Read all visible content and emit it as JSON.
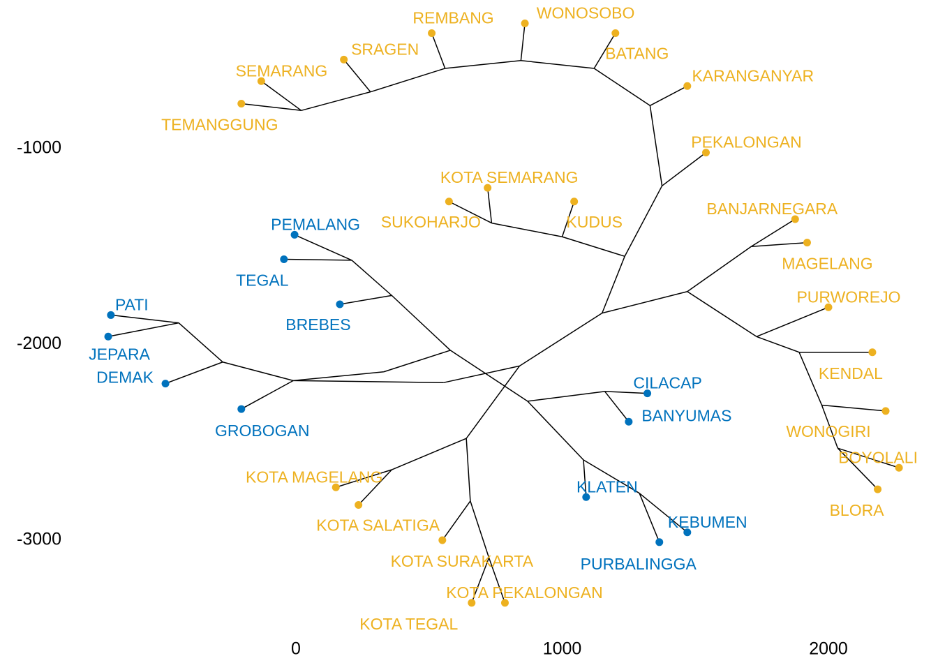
{
  "chart_data": {
    "type": "scatter",
    "subtype": "unrooted-tree",
    "title": "",
    "xlabel": "",
    "ylabel": "",
    "xlim": [
      -710,
      2290
    ],
    "ylim": [
      -3400,
      -400
    ],
    "grid": false,
    "legend": "none",
    "colors": {
      "cluster1": "#0072BD",
      "cluster2": "#EDB120",
      "edge": "#000000"
    },
    "x_ticks": [
      {
        "value": 0,
        "label": "0"
      },
      {
        "value": 1000,
        "label": "1000"
      },
      {
        "value": 2000,
        "label": "2000"
      }
    ],
    "y_ticks": [
      {
        "value": -1000,
        "label": "-1000"
      },
      {
        "value": -2000,
        "label": "-2000"
      },
      {
        "value": -3000,
        "label": "-3000"
      }
    ],
    "leaves": [
      {
        "name": "PEMALANG",
        "x": -5,
        "y": -1440,
        "cluster": "cluster1"
      },
      {
        "name": "TEGAL",
        "x": -45,
        "y": -1565,
        "cluster": "cluster1"
      },
      {
        "name": "BREBES",
        "x": 165,
        "y": -1795,
        "cluster": "cluster1"
      },
      {
        "name": "PATI",
        "x": -695,
        "y": -1850,
        "cluster": "cluster1"
      },
      {
        "name": "JEPARA",
        "x": -705,
        "y": -1960,
        "cluster": "cluster1"
      },
      {
        "name": "DEMAK",
        "x": -490,
        "y": -2200,
        "cluster": "cluster1"
      },
      {
        "name": "GROBOGAN",
        "x": -205,
        "y": -2330,
        "cluster": "cluster1"
      },
      {
        "name": "CILACAP",
        "x": 1320,
        "y": -2250,
        "cluster": "cluster1"
      },
      {
        "name": "BANYUMAS",
        "x": 1250,
        "y": -2395,
        "cluster": "cluster1"
      },
      {
        "name": "KLATEN",
        "x": 1090,
        "y": -2780,
        "cluster": "cluster1"
      },
      {
        "name": "KEBUMEN",
        "x": 1470,
        "y": -2960,
        "cluster": "cluster1"
      },
      {
        "name": "PURBALINGGA",
        "x": 1365,
        "y": -3010,
        "cluster": "cluster1"
      },
      {
        "name": "TEMANGGUNG",
        "x": -205,
        "y": -770,
        "cluster": "cluster2"
      },
      {
        "name": "SEMARANG",
        "x": -130,
        "y": -655,
        "cluster": "cluster2"
      },
      {
        "name": "SRAGEN",
        "x": 180,
        "y": -545,
        "cluster": "cluster2"
      },
      {
        "name": "REMBANG",
        "x": 510,
        "y": -410,
        "cluster": "cluster2"
      },
      {
        "name": "WONOSOBO",
        "x": 860,
        "y": -360,
        "cluster": "cluster2"
      },
      {
        "name": "BATANG",
        "x": 1200,
        "y": -410,
        "cluster": "cluster2"
      },
      {
        "name": "KARANGANYAR",
        "x": 1470,
        "y": -680,
        "cluster": "cluster2"
      },
      {
        "name": "PEKALONGAN",
        "x": 1540,
        "y": -1020,
        "cluster": "cluster2"
      },
      {
        "name": "KOTA SEMARANG",
        "x": 720,
        "y": -1200,
        "cluster": "cluster2"
      },
      {
        "name": "SUKOHARJO",
        "x": 575,
        "y": -1270,
        "cluster": "cluster2"
      },
      {
        "name": "KUDUS",
        "x": 1045,
        "y": -1270,
        "cluster": "cluster2"
      },
      {
        "name": "BANJARNEGARA",
        "x": 1875,
        "y": -1360,
        "cluster": "cluster2"
      },
      {
        "name": "MAGELANG",
        "x": 1920,
        "y": -1480,
        "cluster": "cluster2"
      },
      {
        "name": "PURWOREJO",
        "x": 2000,
        "y": -1810,
        "cluster": "cluster2"
      },
      {
        "name": "KENDAL",
        "x": 2165,
        "y": -2040,
        "cluster": "cluster2"
      },
      {
        "name": "WONOGIRI",
        "x": 2215,
        "y": -2340,
        "cluster": "cluster2"
      },
      {
        "name": "BOYOLALI",
        "x": 2265,
        "y": -2630,
        "cluster": "cluster2"
      },
      {
        "name": "BLORA",
        "x": 2185,
        "y": -2740,
        "cluster": "cluster2"
      },
      {
        "name": "KOTA MAGELANG",
        "x": 150,
        "y": -2730,
        "cluster": "cluster2"
      },
      {
        "name": "KOTA SALATIGA",
        "x": 235,
        "y": -2820,
        "cluster": "cluster2"
      },
      {
        "name": "KOTA SURAKARTA",
        "x": 550,
        "y": -3000,
        "cluster": "cluster2"
      },
      {
        "name": "KOTA PEKALONGAN",
        "x": 785,
        "y": -3320,
        "cluster": "cluster2"
      },
      {
        "name": "KOTA TEGAL",
        "x": 660,
        "y": -3320,
        "cluster": "cluster2"
      }
    ],
    "edges": [
      [
        [
          1290,
          -2760
        ],
        [
          1470,
          -2960
        ]
      ],
      [
        [
          1290,
          -2760
        ],
        [
          1365,
          -3010
        ]
      ],
      [
        [
          1080,
          -2590
        ],
        [
          1290,
          -2760
        ]
      ],
      [
        [
          1080,
          -2590
        ],
        [
          1090,
          -2780
        ]
      ],
      [
        [
          870,
          -2290
        ],
        [
          1080,
          -2590
        ]
      ],
      [
        [
          1160,
          -2240
        ],
        [
          1320,
          -2250
        ]
      ],
      [
        [
          1160,
          -2240
        ],
        [
          1250,
          -2395
        ]
      ],
      [
        [
          870,
          -2290
        ],
        [
          1160,
          -2240
        ]
      ],
      [
        [
          580,
          -2030
        ],
        [
          870,
          -2290
        ]
      ],
      [
        [
          360,
          -1750
        ],
        [
          580,
          -2030
        ]
      ],
      [
        [
          360,
          -1750
        ],
        [
          165,
          -1795
        ]
      ],
      [
        [
          210,
          -1570
        ],
        [
          360,
          -1750
        ]
      ],
      [
        [
          210,
          -1570
        ],
        [
          -5,
          -1440
        ]
      ],
      [
        [
          210,
          -1570
        ],
        [
          -45,
          -1565
        ]
      ],
      [
        [
          580,
          -2030
        ],
        [
          330,
          -2140
        ]
      ],
      [
        [
          330,
          -2140
        ],
        [
          -10,
          -2185
        ]
      ],
      [
        [
          -10,
          -2185
        ],
        [
          -275,
          -2090
        ]
      ],
      [
        [
          -275,
          -2090
        ],
        [
          -440,
          -1890
        ]
      ],
      [
        [
          -440,
          -1890
        ],
        [
          -695,
          -1850
        ]
      ],
      [
        [
          -440,
          -1890
        ],
        [
          -705,
          -1960
        ]
      ],
      [
        [
          -275,
          -2090
        ],
        [
          -490,
          -2200
        ]
      ],
      [
        [
          -10,
          -2185
        ],
        [
          -205,
          -2330
        ]
      ],
      [
        [
          -10,
          -2185
        ],
        [
          555,
          -2195
        ]
      ],
      [
        [
          555,
          -2195
        ],
        [
          840,
          -2110
        ]
      ],
      [
        [
          840,
          -2110
        ],
        [
          1150,
          -1840
        ]
      ],
      [
        [
          840,
          -2110
        ],
        [
          640,
          -2480
        ]
      ],
      [
        [
          640,
          -2480
        ],
        [
          360,
          -2640
        ]
      ],
      [
        [
          360,
          -2640
        ],
        [
          150,
          -2730
        ]
      ],
      [
        [
          360,
          -2640
        ],
        [
          235,
          -2820
        ]
      ],
      [
        [
          640,
          -2480
        ],
        [
          655,
          -2800
        ]
      ],
      [
        [
          655,
          -2800
        ],
        [
          550,
          -3000
        ]
      ],
      [
        [
          655,
          -2800
        ],
        [
          725,
          -3090
        ]
      ],
      [
        [
          725,
          -3090
        ],
        [
          785,
          -3320
        ]
      ],
      [
        [
          725,
          -3090
        ],
        [
          660,
          -3320
        ]
      ],
      [
        [
          1150,
          -1840
        ],
        [
          1235,
          -1550
        ]
      ],
      [
        [
          1235,
          -1550
        ],
        [
          1000,
          -1450
        ]
      ],
      [
        [
          1000,
          -1450
        ],
        [
          1045,
          -1270
        ]
      ],
      [
        [
          1000,
          -1450
        ],
        [
          735,
          -1380
        ]
      ],
      [
        [
          735,
          -1380
        ],
        [
          720,
          -1200
        ]
      ],
      [
        [
          735,
          -1380
        ],
        [
          575,
          -1270
        ]
      ],
      [
        [
          1235,
          -1550
        ],
        [
          1375,
          -1190
        ]
      ],
      [
        [
          1375,
          -1190
        ],
        [
          1540,
          -1020
        ]
      ],
      [
        [
          1375,
          -1190
        ],
        [
          1330,
          -780
        ]
      ],
      [
        [
          1330,
          -780
        ],
        [
          1470,
          -680
        ]
      ],
      [
        [
          1330,
          -780
        ],
        [
          1120,
          -590
        ]
      ],
      [
        [
          1120,
          -590
        ],
        [
          1200,
          -410
        ]
      ],
      [
        [
          1120,
          -590
        ],
        [
          845,
          -550
        ]
      ],
      [
        [
          845,
          -550
        ],
        [
          860,
          -360
        ]
      ],
      [
        [
          845,
          -550
        ],
        [
          560,
          -590
        ]
      ],
      [
        [
          560,
          -590
        ],
        [
          510,
          -410
        ]
      ],
      [
        [
          560,
          -590
        ],
        [
          280,
          -710
        ]
      ],
      [
        [
          280,
          -710
        ],
        [
          180,
          -545
        ]
      ],
      [
        [
          280,
          -710
        ],
        [
          20,
          -805
        ]
      ],
      [
        [
          20,
          -805
        ],
        [
          -130,
          -655
        ]
      ],
      [
        [
          20,
          -805
        ],
        [
          -205,
          -770
        ]
      ],
      [
        [
          1150,
          -1840
        ],
        [
          1470,
          -1730
        ]
      ],
      [
        [
          1470,
          -1730
        ],
        [
          1710,
          -1500
        ]
      ],
      [
        [
          1710,
          -1500
        ],
        [
          1875,
          -1360
        ]
      ],
      [
        [
          1710,
          -1500
        ],
        [
          1920,
          -1480
        ]
      ],
      [
        [
          1470,
          -1730
        ],
        [
          1730,
          -1960
        ]
      ],
      [
        [
          1730,
          -1960
        ],
        [
          2000,
          -1810
        ]
      ],
      [
        [
          1730,
          -1960
        ],
        [
          1890,
          -2040
        ]
      ],
      [
        [
          1890,
          -2040
        ],
        [
          2165,
          -2040
        ]
      ],
      [
        [
          1890,
          -2040
        ],
        [
          1975,
          -2310
        ]
      ],
      [
        [
          1975,
          -2310
        ],
        [
          2215,
          -2340
        ]
      ],
      [
        [
          1975,
          -2310
        ],
        [
          2035,
          -2530
        ]
      ],
      [
        [
          2035,
          -2530
        ],
        [
          2265,
          -2630
        ]
      ],
      [
        [
          2035,
          -2530
        ],
        [
          2185,
          -2740
        ]
      ]
    ]
  }
}
